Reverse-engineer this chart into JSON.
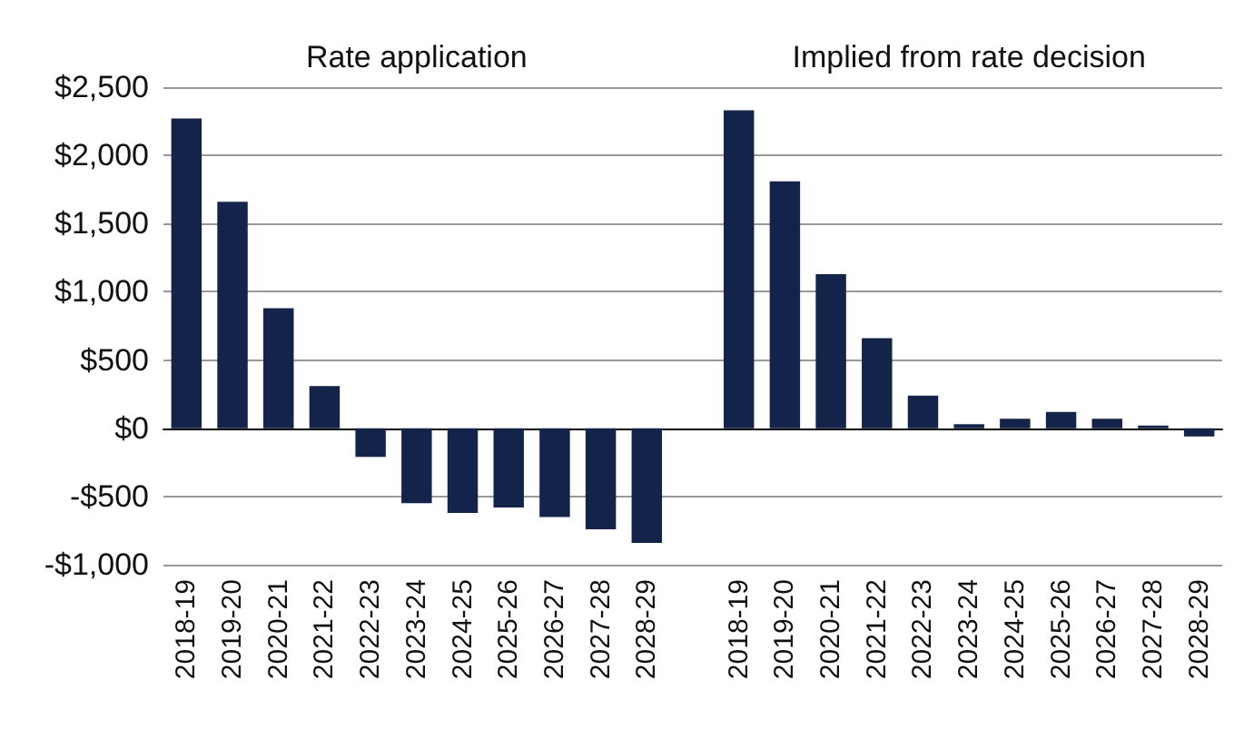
{
  "chart_data": {
    "type": "bar",
    "categories": [
      "2018-19",
      "2019-20",
      "2020-21",
      "2021-22",
      "2022-23",
      "2023-24",
      "2024-25",
      "2025-26",
      "2026-27",
      "2027-28",
      "2028-29",
      null,
      "2018-19",
      "2019-20",
      "2020-21",
      "2021-22",
      "2022-23",
      "2023-24",
      "2024-25",
      "2025-26",
      "2026-27",
      "2027-28",
      "2028-29"
    ],
    "series": [
      {
        "color": "#14234a",
        "values": [
          2270,
          1660,
          880,
          310,
          -210,
          -550,
          -620,
          -580,
          -650,
          -740,
          -840,
          null,
          2330,
          1810,
          1130,
          660,
          240,
          30,
          70,
          120,
          70,
          20,
          -60
        ]
      }
    ],
    "annotations": [
      "Rate application",
      "Implied from rate decision"
    ],
    "ylim": [
      -1000,
      2500
    ],
    "yticks": [
      {
        "value": -1000,
        "label": "-$1,000"
      },
      {
        "value": -500,
        "label": "-$500"
      },
      {
        "value": 0,
        "label": "$0"
      },
      {
        "value": 500,
        "label": "$500"
      },
      {
        "value": 1000,
        "label": "$1,000"
      },
      {
        "value": 1500,
        "label": "$1,500"
      },
      {
        "value": 2000,
        "label": "$2,000"
      },
      {
        "value": 2500,
        "label": "$2,500"
      }
    ],
    "grid": "y"
  }
}
